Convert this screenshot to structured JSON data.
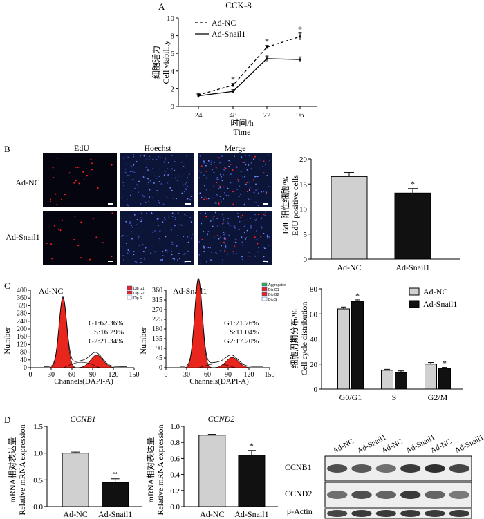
{
  "panels": {
    "A": "A",
    "B": "B",
    "C": "C",
    "D": "D"
  },
  "panel_b": {
    "col_labels": [
      "EdU",
      "Hoechst",
      "Merge"
    ],
    "row_labels": [
      "Ad-NC",
      "Ad-Snail1"
    ]
  },
  "panel_c_flow": [
    {
      "label": "Ad-NC",
      "legend": [
        "Dip G1",
        "Dip G2",
        "Dip S"
      ],
      "stats": [
        "G1:62.36%",
        "S:16.29%",
        "G2:21.34%"
      ],
      "xlabel": "Channels(DAPI-A)",
      "ylabel": "Number",
      "xticks": [
        "0",
        "30",
        "60",
        "90",
        "120",
        "150"
      ],
      "yticks": [
        "0",
        "40",
        "80",
        "120",
        "160",
        "200",
        "240",
        "280",
        "320",
        "360",
        "400"
      ]
    },
    {
      "label": "Ad-Snail1",
      "legend": [
        "Aggregates",
        "Dip G1",
        "Dip G2",
        "Dip S"
      ],
      "stats": [
        "G1:71.76%",
        "S:11.04%",
        "G2:17.20%"
      ],
      "xlabel": "Channels(DAPI-A)",
      "ylabel": "Number",
      "xticks": [
        "0",
        "30",
        "60",
        "90",
        "120",
        "150"
      ],
      "yticks": [
        "0",
        "45",
        "90",
        "135",
        "180",
        "225",
        "270",
        "315",
        "360"
      ]
    }
  ],
  "panel_d_blot": {
    "lanes": [
      "Ad-NC",
      "Ad-Snail1",
      "Ad-NC",
      "Ad-Snail1",
      "Ad-NC",
      "Ad-Snail1"
    ],
    "rows": [
      "CCNB1",
      "CCND2",
      "β-Actin"
    ]
  },
  "colors": {
    "ncBar": "#d0d0d0",
    "snBar": "#111111",
    "g1Fill": "#e8261e",
    "sFill": "#e8261e"
  },
  "chart_data": [
    {
      "id": "cck8",
      "type": "line",
      "title": "CCK-8",
      "xlabel": "时间/h",
      "xlabel2": "Time",
      "ylabel": "细胞活力",
      "ylabel2": "Cell viability",
      "categories": [
        "24",
        "48",
        "72",
        "96"
      ],
      "ylim": [
        0,
        10
      ],
      "yticks": [
        "0",
        "2",
        "4",
        "6",
        "8",
        "10"
      ],
      "series": [
        {
          "name": "Ad-NC",
          "values": [
            1.3,
            2.4,
            6.7,
            7.9
          ],
          "err": [
            0.2,
            0.2,
            0.2,
            0.4
          ],
          "style": "dashed"
        },
        {
          "name": "Ad-Snail1",
          "values": [
            1.2,
            1.7,
            5.4,
            5.3
          ],
          "err": [
            0.2,
            0.2,
            0.3,
            0.3
          ],
          "style": "solid"
        }
      ],
      "significance": [
        "",
        "*",
        "*",
        "*"
      ]
    },
    {
      "id": "edu",
      "type": "bar",
      "ylabel": "EdU阳性细胞/%",
      "ylabel2": "EdU positive cells",
      "categories": [
        "Ad-NC",
        "Ad-Snail1"
      ],
      "values": [
        16.5,
        13.2
      ],
      "err": [
        0.8,
        0.9
      ],
      "ylim": [
        0,
        20
      ],
      "yticks": [
        "0",
        "5",
        "10",
        "15",
        "20"
      ],
      "significance": [
        "",
        "*"
      ]
    },
    {
      "id": "cellcycle",
      "type": "bar",
      "ylabel": "细胞周期分布/%",
      "ylabel2": "Cell cycle distribution",
      "categories": [
        "G0/G1",
        "S",
        "G2/M"
      ],
      "series": [
        {
          "name": "Ad-NC",
          "values": [
            64,
            15,
            20
          ],
          "err": [
            1.5,
            0.8,
            1.2
          ]
        },
        {
          "name": "Ad-Snail1",
          "values": [
            70,
            13,
            16.5
          ],
          "err": [
            1.2,
            1.5,
            0.8
          ]
        }
      ],
      "ylim": [
        0,
        80
      ],
      "yticks": [
        "0",
        "20",
        "40",
        "60",
        "80"
      ],
      "significance": [
        "*",
        "",
        "*"
      ]
    },
    {
      "id": "ccnb1",
      "type": "bar",
      "title": "CCNB1",
      "ylabel": "mRNA相对表达量",
      "ylabel2": "Relative mRNA expression",
      "categories": [
        "Ad-NC",
        "Ad-Snail1"
      ],
      "values": [
        1.0,
        0.45
      ],
      "err": [
        0.02,
        0.07
      ],
      "ylim": [
        0,
        1.5
      ],
      "yticks": [
        "0.0",
        "0.5",
        "1.0",
        "1.5"
      ],
      "significance": [
        "",
        "*"
      ]
    },
    {
      "id": "ccnd2",
      "type": "bar",
      "title": "CCND2",
      "ylabel": "mRNA相对表达量",
      "ylabel2": "Relative mRNA expression",
      "categories": [
        "Ad-NC",
        "Ad-Snail1"
      ],
      "values": [
        0.89,
        0.64
      ],
      "err": [
        0.01,
        0.06
      ],
      "ylim": [
        0,
        1.0
      ],
      "yticks": [
        "0.0",
        "0.2",
        "0.4",
        "0.6",
        "0.8",
        "1.0"
      ],
      "significance": [
        "",
        "*"
      ]
    }
  ]
}
